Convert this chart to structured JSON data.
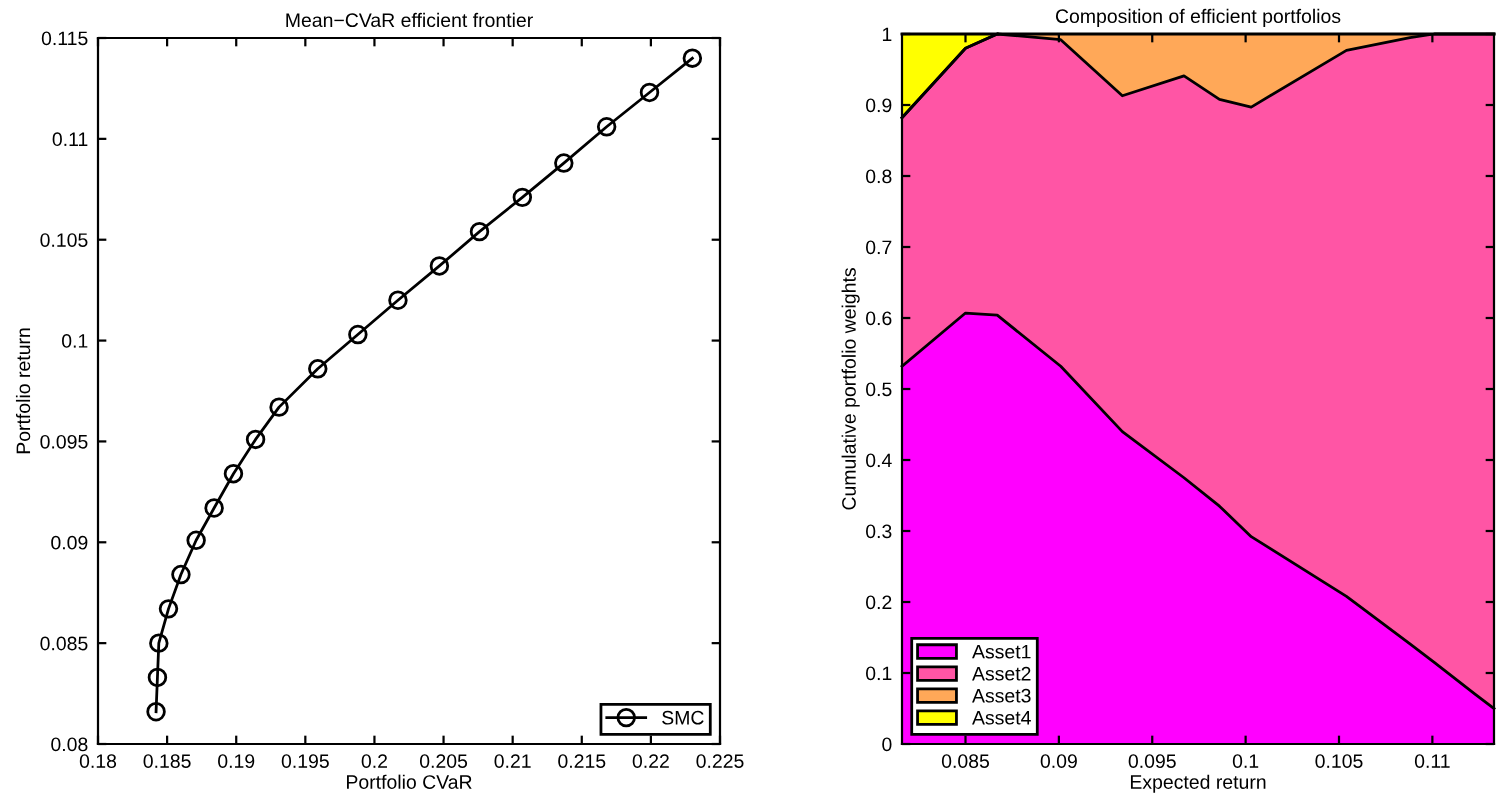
{
  "chart_data": [
    {
      "type": "line",
      "title": "Mean−CVaR efficient frontier",
      "xlabel": "Portfolio CVaR",
      "ylabel": "Portfolio return",
      "marker": "circle",
      "line_style": "solid",
      "grid": false,
      "legend": "bottom right",
      "xlim": [
        0.18,
        0.225
      ],
      "ylim": [
        0.08,
        0.115
      ],
      "xticks": [
        0.18,
        0.185,
        0.19,
        0.195,
        0.2,
        0.205,
        0.21,
        0.215,
        0.22,
        0.225
      ],
      "yticks": [
        0.08,
        0.085,
        0.09,
        0.095,
        0.1,
        0.105,
        0.11,
        0.115
      ],
      "series": [
        {
          "name": "SMC",
          "color": "#000000",
          "x": [
            0.1842,
            0.1843,
            0.1844,
            0.1851,
            0.186,
            0.1871,
            0.1884,
            0.1898,
            0.1914,
            0.1931,
            0.1959,
            0.1988,
            0.2017,
            0.2047,
            0.2076,
            0.2107,
            0.2137,
            0.2168,
            0.2199,
            0.223
          ],
          "values": [
            0.0816,
            0.0833,
            0.085,
            0.0867,
            0.0884,
            0.0901,
            0.0917,
            0.0934,
            0.0951,
            0.0967,
            0.0986,
            0.1003,
            0.102,
            0.1037,
            0.1054,
            0.1071,
            0.1088,
            0.1106,
            0.1123,
            0.114
          ]
        }
      ]
    },
    {
      "type": "area",
      "stacked": true,
      "title": "Composition of efficient portfolios",
      "xlabel": "Expected return",
      "ylabel": "Cumulative portfolio weights",
      "grid": false,
      "legend": "bottom left",
      "xlim": [
        0.0816,
        0.1133
      ],
      "ylim": [
        0,
        1
      ],
      "xticks": [
        0.085,
        0.09,
        0.095,
        0.1,
        0.105,
        0.11
      ],
      "yticks": [
        0,
        0.1,
        0.2,
        0.3,
        0.4,
        0.5,
        0.6,
        0.7,
        0.8,
        0.9,
        1
      ],
      "x": [
        0.0816,
        0.085,
        0.0867,
        0.0901,
        0.0934,
        0.0967,
        0.0986,
        0.1003,
        0.1054,
        0.1088,
        0.1101,
        0.1123,
        0.1133
      ],
      "series": [
        {
          "name": "Asset1",
          "color": "#ff00ff",
          "values": [
            0.532,
            0.607,
            0.604,
            0.532,
            0.44,
            0.375,
            0.335,
            0.292,
            0.208,
            0.141,
            0.115,
            0.07,
            0.05
          ]
        },
        {
          "name": "Asset2",
          "color": "#ff55a5",
          "values": [
            0.35,
            0.373,
            0.396,
            0.46,
            0.473,
            0.566,
            0.573,
            0.605,
            0.769,
            0.854,
            0.885,
            0.93,
            0.95
          ]
        },
        {
          "name": "Asset3",
          "color": "#ffa858",
          "values": [
            0,
            0,
            0,
            0.008,
            0.087,
            0.059,
            0.092,
            0.103,
            0.023,
            0.005,
            0,
            0,
            0
          ]
        },
        {
          "name": "Asset4",
          "color": "#ffff00",
          "values": [
            0.118,
            0.02,
            0,
            null,
            null,
            null,
            null,
            null,
            null,
            null,
            null,
            null,
            null
          ]
        }
      ]
    }
  ]
}
